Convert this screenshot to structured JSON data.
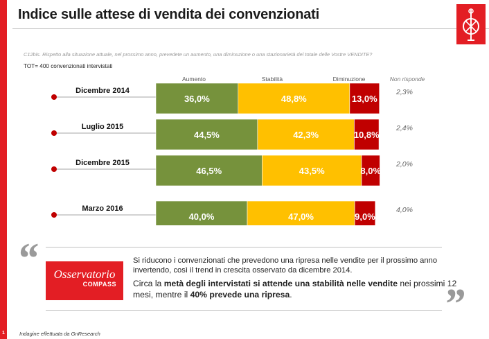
{
  "title": "Indice sulle attese di vendita dei convenzionati",
  "question": "C12bis.  Rispetto alla situazione attuale, nel prossimo anno,  prevedete  un aumento, una diminuzione  o una stazionarietà del totale delle Vostre VENDITE?",
  "sample_note": "TOT= 400 convenzionati intervistati",
  "chart_data": {
    "type": "bar",
    "orientation": "horizontal",
    "stacked": true,
    "categories": [
      "Dicembre 2014",
      "Luglio 2015",
      "Dicembre 2015",
      "Marzo 2016"
    ],
    "series": [
      {
        "name": "Aumento",
        "values": [
          36.0,
          44.5,
          46.5,
          40.0
        ],
        "labels": [
          "36,0%",
          "44,5%",
          "46,5%",
          "40,0%"
        ],
        "color": "#76923c"
      },
      {
        "name": "Stabilità",
        "values": [
          48.8,
          42.3,
          43.5,
          47.0
        ],
        "labels": [
          "48,8%",
          "42,3%",
          "43,5%",
          "47,0%"
        ],
        "color": "#ffc000"
      },
      {
        "name": "Diminuzione",
        "values": [
          13.0,
          10.8,
          8.0,
          9.0
        ],
        "labels": [
          "13,0%",
          "10,8%",
          "8,0%",
          "9,0%"
        ],
        "color": "#c00000"
      }
    ],
    "non_risponde": {
      "name": "Non risponde",
      "values": [
        2.3,
        2.4,
        2.0,
        4.0
      ],
      "labels": [
        "2,3%",
        "2,4%",
        "2,0%",
        "4,0%"
      ]
    },
    "xlim": [
      0,
      100
    ],
    "legend": "top",
    "marker_color": "#c00000"
  },
  "brand": {
    "line1": "Osservatorio",
    "line2": "COMPASS"
  },
  "note": {
    "p1": "Si riducono i convenzionati che prevedono una ripresa nelle vendite per il prossimo anno invertendo, così il trend in  crescita osservato da dicembre 2014.",
    "p2_a": "Circa la ",
    "p2_b": "metà degli intervistati si attende una stabilità nelle vendite",
    "p2_c": " nei prossimi 12 mesi, mentre il ",
    "p2_d": "40% prevede una ripresa",
    "p2_e": "."
  },
  "quotes": {
    "open": "“",
    "close": "”"
  },
  "footer": "Indagine effettuata da GnResearch",
  "page_number": "1"
}
